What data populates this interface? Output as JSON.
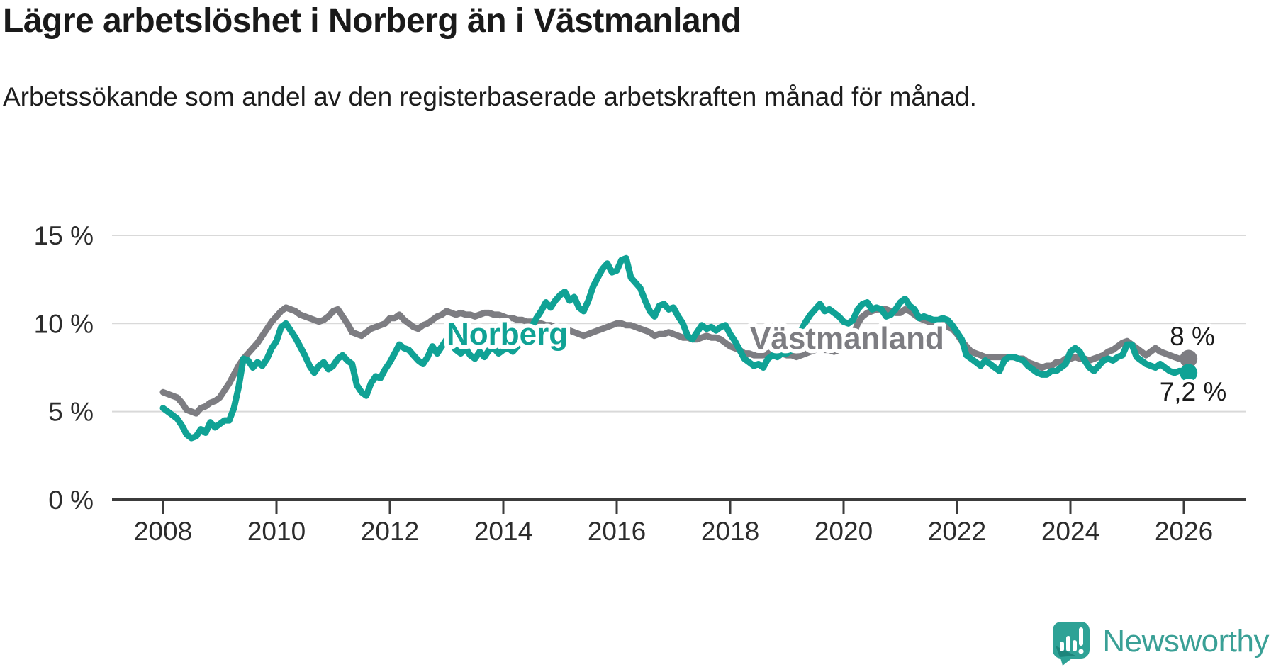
{
  "title": "Lägre arbetslöshet i Norberg än i Västmanland",
  "subtitle": "Arbetssökande som andel av den registerbaserade arbetskraften månad för månad.",
  "branding": {
    "wordmark": "Newsworthy",
    "logo_icon": "speech-bubble-bar-chart-icon",
    "brand_color": "#2ea296"
  },
  "chart_data": {
    "type": "line",
    "title": "Lägre arbetslöshet i Norberg än i Västmanland",
    "subtitle": "Arbetssökande som andel av den registerbaserade arbetskraften månad för månad.",
    "unit": "%",
    "grid": "horizontal-gridlines-at-5-10-15",
    "legend_position": "inline-labels-on-lines",
    "x_start": "2008-01",
    "x_end": "2026-02",
    "x_tick_labels": [
      "2008",
      "2010",
      "2012",
      "2014",
      "2016",
      "2018",
      "2020",
      "2022",
      "2024",
      "2026"
    ],
    "y_ticks": [
      {
        "label": "0 %",
        "value": 0
      },
      {
        "label": "5 %",
        "value": 5
      },
      {
        "label": "10 %",
        "value": 10
      },
      {
        "label": "15 %",
        "value": 15
      }
    ],
    "ylim": [
      0,
      15.8
    ],
    "series": [
      {
        "name": "Västmanland",
        "color": "#7d7d82",
        "end_value": 8.0,
        "end_label": "8 %",
        "values": [
          6.1,
          6.0,
          5.9,
          5.8,
          5.5,
          5.1,
          5.0,
          4.9,
          5.2,
          5.3,
          5.5,
          5.6,
          5.8,
          6.2,
          6.6,
          7.1,
          7.6,
          8.0,
          8.3,
          8.6,
          8.9,
          9.3,
          9.7,
          10.1,
          10.4,
          10.7,
          10.9,
          10.8,
          10.7,
          10.5,
          10.4,
          10.3,
          10.2,
          10.1,
          10.2,
          10.4,
          10.7,
          10.8,
          10.4,
          10.0,
          9.5,
          9.4,
          9.3,
          9.5,
          9.7,
          9.8,
          9.9,
          10.0,
          10.3,
          10.3,
          10.5,
          10.2,
          10.0,
          9.8,
          9.7,
          9.9,
          10.0,
          10.2,
          10.4,
          10.5,
          10.7,
          10.6,
          10.5,
          10.6,
          10.5,
          10.5,
          10.4,
          10.5,
          10.6,
          10.6,
          10.5,
          10.5,
          10.4,
          10.3,
          10.3,
          10.2,
          10.2,
          10.1,
          10.1,
          10.0,
          10.0,
          9.9,
          9.9,
          9.8,
          9.7,
          9.7,
          9.6,
          9.5,
          9.4,
          9.3,
          9.4,
          9.5,
          9.6,
          9.7,
          9.8,
          9.9,
          10.0,
          10.0,
          9.9,
          9.9,
          9.8,
          9.7,
          9.6,
          9.5,
          9.3,
          9.4,
          9.4,
          9.5,
          9.4,
          9.3,
          9.2,
          9.2,
          9.1,
          9.1,
          9.2,
          9.3,
          9.2,
          9.2,
          9.1,
          8.9,
          8.7,
          8.6,
          8.5,
          8.3,
          8.3,
          8.2,
          8.2,
          8.2,
          8.3,
          8.4,
          8.3,
          8.3,
          8.2,
          8.2,
          8.1,
          8.2,
          8.3,
          8.4,
          8.5,
          8.6,
          8.5,
          8.5,
          8.4,
          8.5,
          8.6,
          8.8,
          9.3,
          10.0,
          10.4,
          10.6,
          10.7,
          10.8,
          10.8,
          10.8,
          10.7,
          10.6,
          10.6,
          10.8,
          10.7,
          10.5,
          10.3,
          10.2,
          10.1,
          10.1,
          10.0,
          9.9,
          9.8,
          9.7,
          9.4,
          9.0,
          8.7,
          8.4,
          8.3,
          8.2,
          8.1,
          8.1,
          8.1,
          8.1,
          8.1,
          8.1,
          8.1,
          8.0,
          8.0,
          7.8,
          7.7,
          7.6,
          7.5,
          7.6,
          7.6,
          7.8,
          7.8,
          8.0,
          8.0,
          8.1,
          8.0,
          8.0,
          7.9,
          8.0,
          8.1,
          8.2,
          8.4,
          8.5,
          8.7,
          8.9,
          9.0,
          8.8,
          8.6,
          8.4,
          8.2,
          8.4,
          8.6,
          8.4,
          8.3,
          8.2,
          8.1,
          8.0,
          8.0,
          8.0
        ]
      },
      {
        "name": "Norberg",
        "color": "#10a295",
        "end_value": 7.2,
        "end_label": "7,2 %",
        "values": [
          5.2,
          5.0,
          4.8,
          4.6,
          4.2,
          3.7,
          3.5,
          3.6,
          4.0,
          3.8,
          4.4,
          4.1,
          4.3,
          4.5,
          4.5,
          5.2,
          6.4,
          8.0,
          7.9,
          7.5,
          7.8,
          7.6,
          8.0,
          8.6,
          9.0,
          9.8,
          10.0,
          9.6,
          9.2,
          8.7,
          8.2,
          7.6,
          7.2,
          7.6,
          7.8,
          7.4,
          7.6,
          8.0,
          8.2,
          7.9,
          7.7,
          6.5,
          6.1,
          5.9,
          6.6,
          7.0,
          6.9,
          7.4,
          7.8,
          8.3,
          8.8,
          8.6,
          8.5,
          8.2,
          7.9,
          7.7,
          8.1,
          8.7,
          8.3,
          8.7,
          9.1,
          8.8,
          8.5,
          8.3,
          8.6,
          8.2,
          8.0,
          8.4,
          8.1,
          8.5,
          8.6,
          8.3,
          8.5,
          8.6,
          8.4,
          8.7,
          9.0,
          9.4,
          9.8,
          10.3,
          10.7,
          11.2,
          10.9,
          11.3,
          11.6,
          11.8,
          11.3,
          11.5,
          10.9,
          10.7,
          11.3,
          12.1,
          12.6,
          13.1,
          13.4,
          12.9,
          13.0,
          13.6,
          13.7,
          12.6,
          12.3,
          12.0,
          11.3,
          10.7,
          10.4,
          11.0,
          11.1,
          10.8,
          10.9,
          10.4,
          10.0,
          9.3,
          9.1,
          9.5,
          9.9,
          9.7,
          9.8,
          9.6,
          9.8,
          9.9,
          9.4,
          9.0,
          8.5,
          8.0,
          7.8,
          7.6,
          7.7,
          7.5,
          8.0,
          8.2,
          8.1,
          8.3,
          8.3,
          8.5,
          9.0,
          9.6,
          10.1,
          10.5,
          10.8,
          11.1,
          10.7,
          10.8,
          10.6,
          10.4,
          10.1,
          10.0,
          10.2,
          10.8,
          11.1,
          11.2,
          10.8,
          10.9,
          10.8,
          10.4,
          10.5,
          10.8,
          11.2,
          11.4,
          11.0,
          10.8,
          10.3,
          10.4,
          10.3,
          10.2,
          10.2,
          10.3,
          10.2,
          9.9,
          9.5,
          9.1,
          8.2,
          8.0,
          7.8,
          7.6,
          7.9,
          7.7,
          7.5,
          7.3,
          7.9,
          8.1,
          8.1,
          8.0,
          7.9,
          7.6,
          7.4,
          7.2,
          7.1,
          7.1,
          7.3,
          7.3,
          7.5,
          7.7,
          8.4,
          8.6,
          8.4,
          7.9,
          7.5,
          7.3,
          7.6,
          7.9,
          8.0,
          7.9,
          8.1,
          8.2,
          8.8,
          8.8,
          8.1,
          7.9,
          7.7,
          7.6,
          7.5,
          7.7,
          7.5,
          7.3,
          7.2,
          7.3,
          7.3,
          7.2
        ]
      }
    ]
  }
}
